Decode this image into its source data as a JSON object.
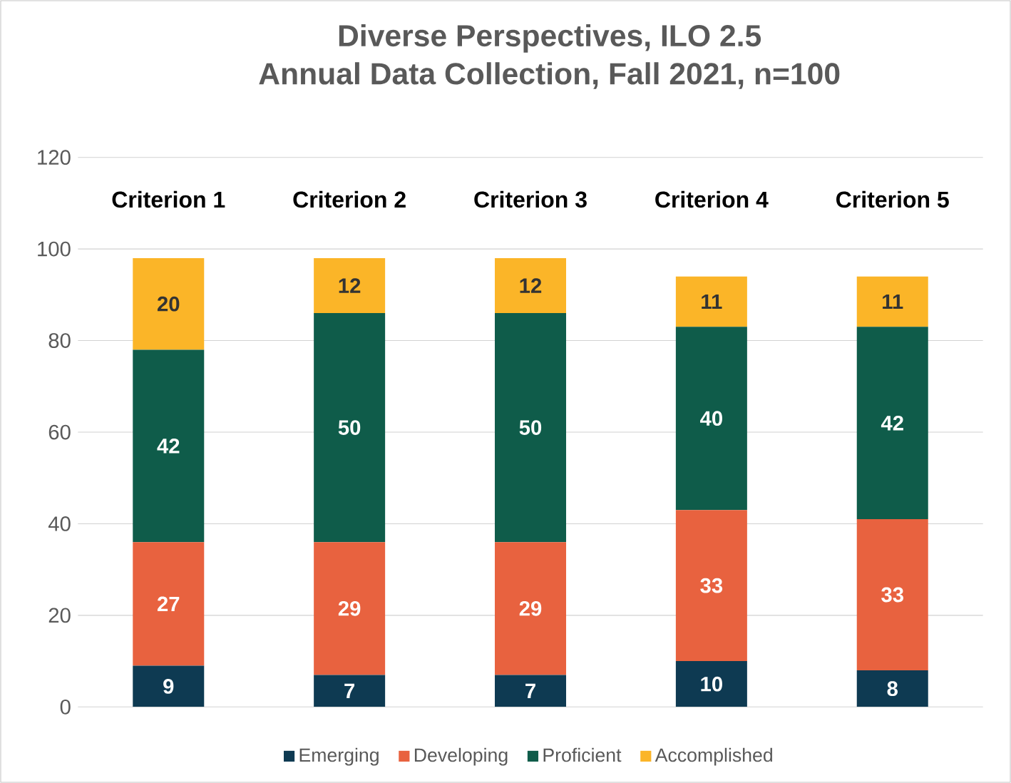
{
  "chart_data": {
    "type": "bar",
    "title": "Diverse Perspectives, ILO 2.5",
    "subtitle": "Annual Data Collection, Fall 2021, n=100",
    "categories": [
      "Criterion 1",
      "Criterion 2",
      "Criterion 3",
      "Criterion 4",
      "Criterion 5"
    ],
    "stacked": true,
    "data_labels": true,
    "grid": "y",
    "legend": "bottom",
    "ylim": [
      0,
      120
    ],
    "yticks": [
      0,
      20,
      40,
      60,
      80,
      100,
      120
    ],
    "series": [
      {
        "name": "Emerging",
        "color": "#0e3a52",
        "values": [
          9,
          7,
          7,
          10,
          8
        ]
      },
      {
        "name": "Developing",
        "color": "#e8623f",
        "values": [
          27,
          29,
          29,
          33,
          33
        ]
      },
      {
        "name": "Proficient",
        "color": "#0f5c4a",
        "values": [
          42,
          50,
          50,
          40,
          42
        ]
      },
      {
        "name": "Accomplished",
        "color": "#fbb528",
        "values": [
          20,
          12,
          12,
          11,
          11
        ]
      }
    ]
  }
}
